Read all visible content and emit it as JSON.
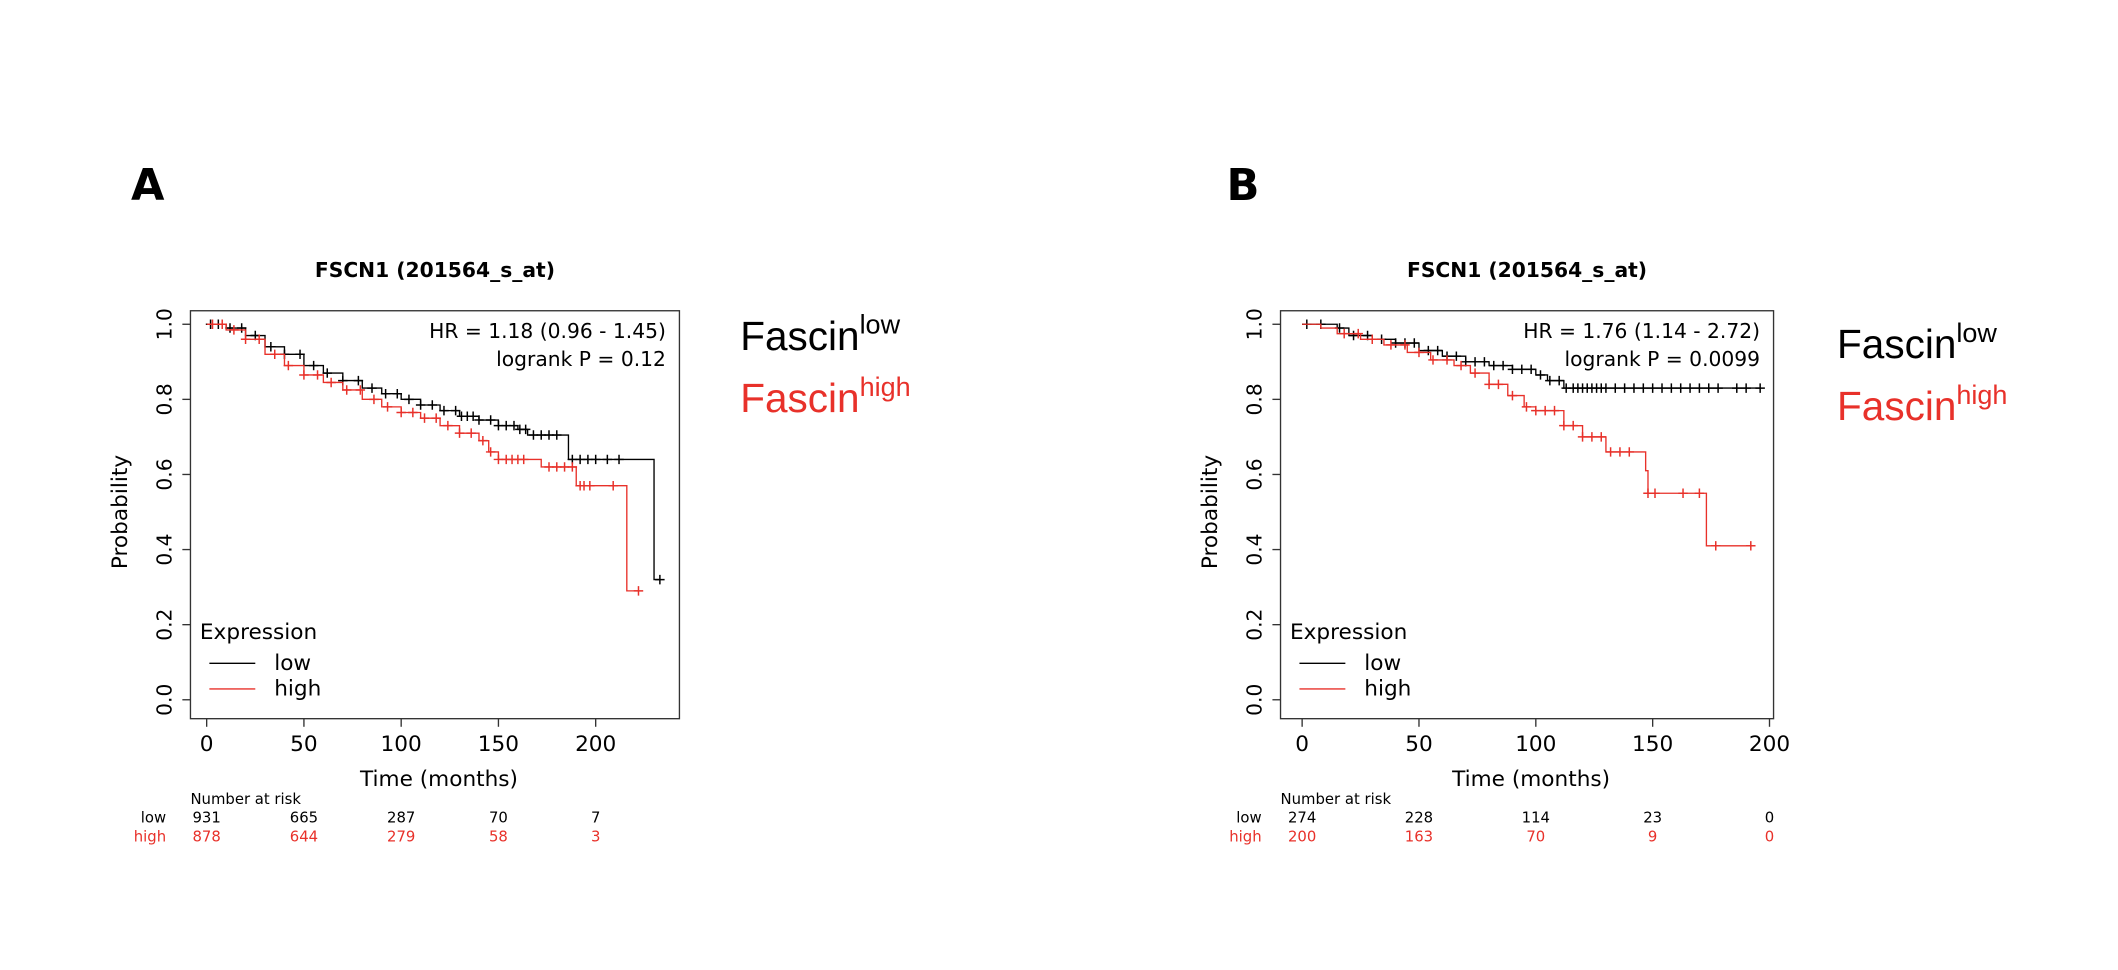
{
  "colors": {
    "low": "#000000",
    "high": "#e8312a"
  },
  "chart_data": [
    {
      "panel_label": "A",
      "type": "line",
      "title": "FSCN1 (201564_s_at)",
      "xlabel": "Time (months)",
      "ylabel": "Probability",
      "xlim": [
        0,
        235
      ],
      "ylim": [
        0,
        1
      ],
      "xticks": [
        "0",
        "50",
        "100",
        "150",
        "200"
      ],
      "yticks": [
        "0.0",
        "0.2",
        "0.4",
        "0.6",
        "0.8",
        "1.0"
      ],
      "annotation": [
        "HR = 1.18 (0.96 - 1.45)",
        "logrank P = 0.12"
      ],
      "legend": {
        "title": "Expression",
        "placement": "bottom-left",
        "items": [
          "low",
          "high"
        ]
      },
      "side_labels": [
        {
          "base": "Fascin",
          "sup": "low"
        },
        {
          "base": "Fascin",
          "sup": "high"
        }
      ],
      "series": [
        {
          "name": "low",
          "steps": [
            [
              0,
              1.0
            ],
            [
              10,
              0.99
            ],
            [
              20,
              0.97
            ],
            [
              30,
              0.94
            ],
            [
              40,
              0.92
            ],
            [
              50,
              0.89
            ],
            [
              60,
              0.87
            ],
            [
              70,
              0.85
            ],
            [
              80,
              0.83
            ],
            [
              90,
              0.815
            ],
            [
              100,
              0.8
            ],
            [
              110,
              0.785
            ],
            [
              120,
              0.77
            ],
            [
              130,
              0.755
            ],
            [
              140,
              0.745
            ],
            [
              150,
              0.73
            ],
            [
              160,
              0.72
            ],
            [
              165,
              0.705
            ],
            [
              186,
              0.64
            ],
            [
              230,
              0.32
            ],
            [
              233,
              0.32
            ]
          ],
          "censored": [
            2,
            6,
            12,
            18,
            25,
            33,
            40,
            48,
            55,
            62,
            70,
            78,
            85,
            92,
            98,
            104,
            110,
            116,
            122,
            128,
            131,
            134,
            137,
            140,
            146,
            150,
            154,
            158,
            161,
            164,
            168,
            172,
            176,
            180,
            188,
            192,
            196,
            200,
            206,
            212,
            233
          ]
        },
        {
          "name": "high",
          "steps": [
            [
              0,
              1.0
            ],
            [
              10,
              0.985
            ],
            [
              20,
              0.96
            ],
            [
              30,
              0.92
            ],
            [
              40,
              0.89
            ],
            [
              50,
              0.865
            ],
            [
              60,
              0.845
            ],
            [
              70,
              0.825
            ],
            [
              80,
              0.8
            ],
            [
              90,
              0.78
            ],
            [
              100,
              0.765
            ],
            [
              110,
              0.75
            ],
            [
              120,
              0.73
            ],
            [
              130,
              0.71
            ],
            [
              140,
              0.69
            ],
            [
              145,
              0.66
            ],
            [
              150,
              0.64
            ],
            [
              172,
              0.62
            ],
            [
              190,
              0.57
            ],
            [
              216,
              0.29
            ],
            [
              222,
              0.29
            ]
          ],
          "censored": [
            3,
            8,
            14,
            20,
            27,
            35,
            42,
            50,
            57,
            64,
            72,
            79,
            86,
            93,
            100,
            106,
            112,
            118,
            124,
            130,
            136,
            142,
            146,
            150,
            154,
            157,
            160,
            163,
            176,
            180,
            184,
            188,
            192,
            194,
            197,
            209,
            222
          ]
        }
      ],
      "risk_table": {
        "heading": "Number at risk",
        "rows": [
          {
            "label": "low",
            "values": [
              "931",
              "665",
              "287",
              "70",
              "7"
            ]
          },
          {
            "label": "high",
            "values": [
              "878",
              "644",
              "279",
              "58",
              "3"
            ]
          }
        ]
      }
    },
    {
      "panel_label": "B",
      "type": "line",
      "title": "FSCN1 (201564_s_at)",
      "xlabel": "Time (months)",
      "ylabel": "Probability",
      "xlim": [
        0,
        200
      ],
      "ylim": [
        0,
        1
      ],
      "xticks": [
        "0",
        "50",
        "100",
        "150",
        "200"
      ],
      "yticks": [
        "0.0",
        "0.2",
        "0.4",
        "0.6",
        "0.8",
        "1.0"
      ],
      "annotation": [
        "HR = 1.76 (1.14 - 2.72)",
        "logrank P = 0.0099"
      ],
      "legend": {
        "title": "Expression",
        "placement": "bottom-left",
        "items": [
          "low",
          "high"
        ]
      },
      "side_labels": [
        {
          "base": "Fascin",
          "sup": "low"
        },
        {
          "base": "Fascin",
          "sup": "high"
        }
      ],
      "series": [
        {
          "name": "low",
          "steps": [
            [
              0,
              1.0
            ],
            [
              15,
              0.99
            ],
            [
              20,
              0.97
            ],
            [
              30,
              0.96
            ],
            [
              40,
              0.95
            ],
            [
              50,
              0.93
            ],
            [
              60,
              0.915
            ],
            [
              70,
              0.9
            ],
            [
              80,
              0.89
            ],
            [
              90,
              0.88
            ],
            [
              100,
              0.865
            ],
            [
              105,
              0.85
            ],
            [
              112,
              0.83
            ],
            [
              196,
              0.83
            ]
          ],
          "censored": [
            2,
            8,
            16,
            22,
            28,
            34,
            40,
            44,
            48,
            54,
            58,
            62,
            66,
            70,
            74,
            78,
            82,
            86,
            90,
            94,
            98,
            102,
            106,
            110,
            113,
            116,
            118,
            120,
            122,
            124,
            126,
            128,
            130,
            134,
            138,
            142,
            146,
            150,
            154,
            158,
            162,
            166,
            170,
            174,
            178,
            186,
            190,
            196
          ]
        },
        {
          "name": "high",
          "steps": [
            [
              0,
              1.0
            ],
            [
              8,
              0.99
            ],
            [
              15,
              0.975
            ],
            [
              25,
              0.96
            ],
            [
              35,
              0.945
            ],
            [
              45,
              0.925
            ],
            [
              55,
              0.905
            ],
            [
              65,
              0.89
            ],
            [
              72,
              0.87
            ],
            [
              80,
              0.84
            ],
            [
              88,
              0.81
            ],
            [
              95,
              0.78
            ],
            [
              100,
              0.77
            ],
            [
              112,
              0.73
            ],
            [
              120,
              0.7
            ],
            [
              130,
              0.66
            ],
            [
              147,
              0.61
            ],
            [
              148,
              0.55
            ],
            [
              173,
              0.41
            ],
            [
              194,
              0.41
            ]
          ],
          "censored": [
            18,
            24,
            30,
            38,
            44,
            50,
            56,
            62,
            68,
            74,
            80,
            84,
            90,
            96,
            100,
            104,
            108,
            112,
            116,
            120,
            124,
            128,
            132,
            136,
            140,
            148,
            151,
            163,
            170,
            177,
            192
          ]
        }
      ],
      "risk_table": {
        "heading": "Number at risk",
        "rows": [
          {
            "label": "low",
            "values": [
              "274",
              "228",
              "114",
              "23",
              "0"
            ]
          },
          {
            "label": "high",
            "values": [
              "200",
              "163",
              "70",
              "9",
              "0"
            ]
          }
        ]
      }
    }
  ]
}
